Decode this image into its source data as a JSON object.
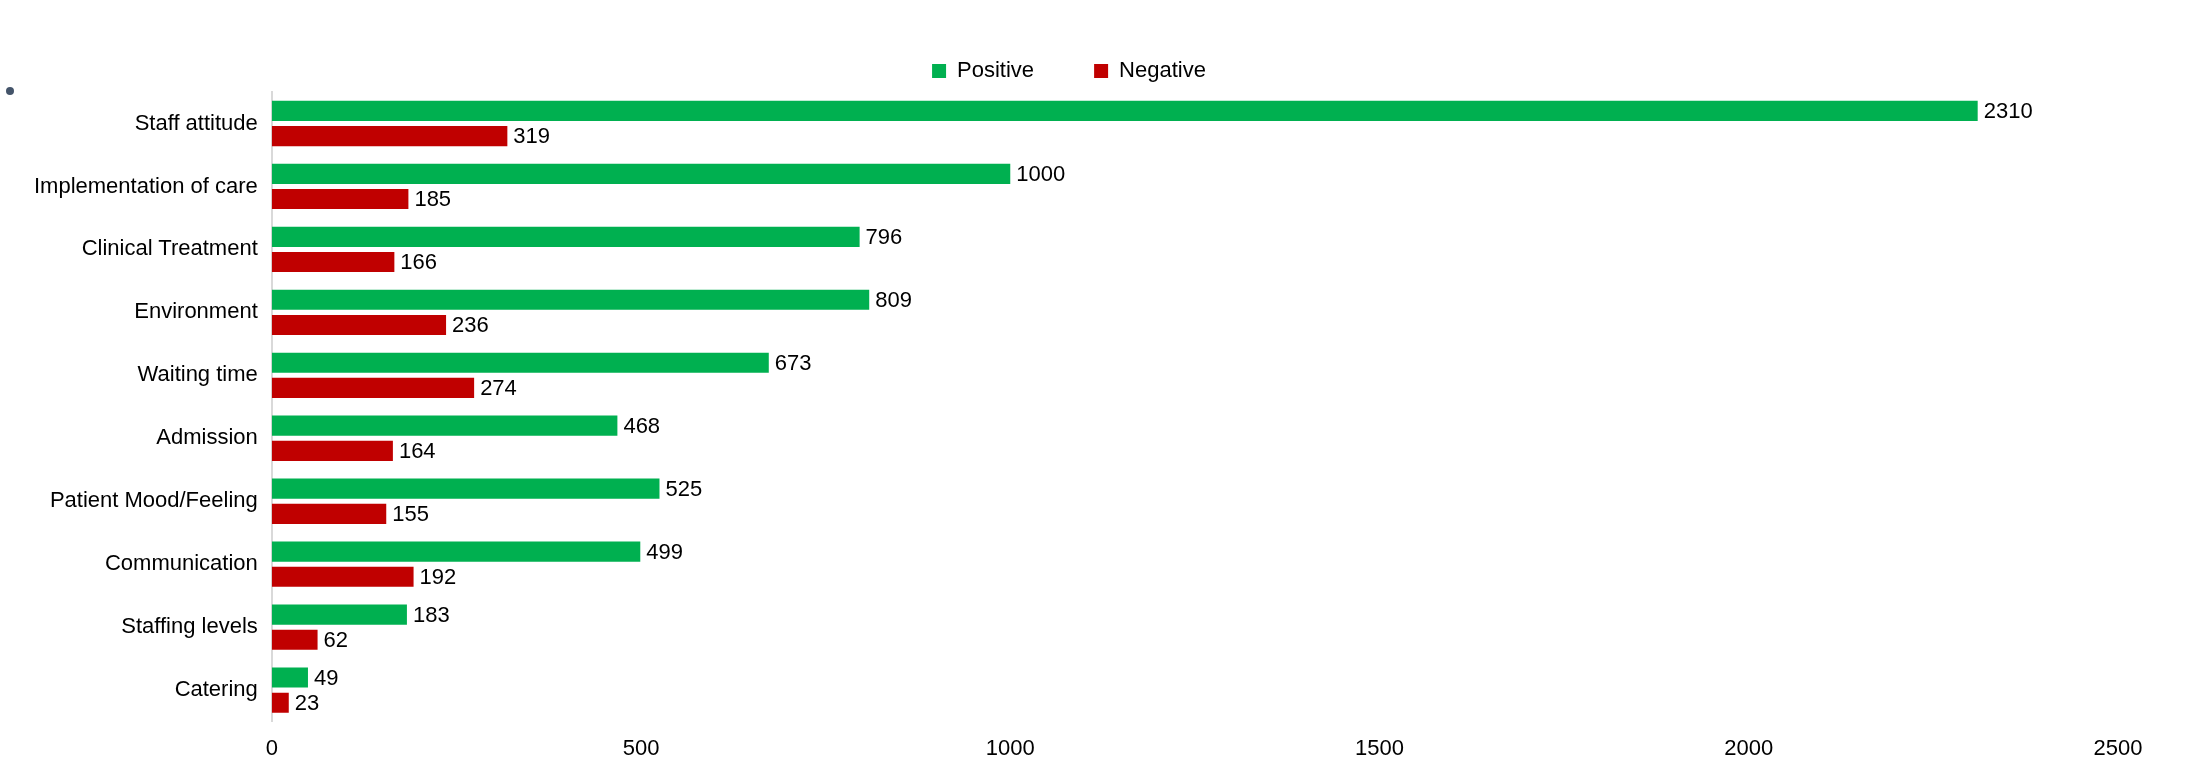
{
  "chart_data": {
    "type": "bar",
    "orientation": "horizontal",
    "categories": [
      "Staff attitude",
      "Implementation of care",
      "Clinical Treatment",
      "Environment",
      "Waiting time",
      "Admission",
      "Patient Mood/Feeling",
      "Communication",
      "Staffing levels",
      "Catering"
    ],
    "series": [
      {
        "name": "Positive",
        "color": "#00b050",
        "values": [
          2310,
          1000,
          796,
          809,
          673,
          468,
          525,
          499,
          183,
          49
        ]
      },
      {
        "name": "Negative",
        "color": "#c00000",
        "values": [
          319,
          185,
          166,
          236,
          274,
          164,
          155,
          192,
          62,
          23
        ]
      }
    ],
    "xlim": [
      0,
      2500
    ],
    "xticks": [
      0,
      500,
      1000,
      1500,
      2000,
      2500
    ],
    "grid": false,
    "legend": "top",
    "data_labels": true
  }
}
